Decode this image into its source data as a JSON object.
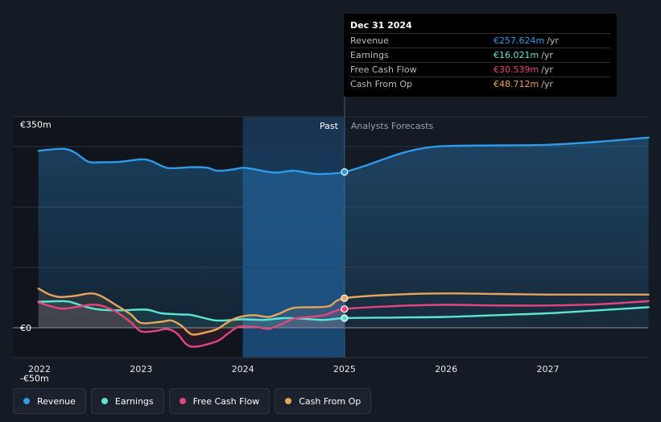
{
  "chart_data": {
    "type": "line",
    "title": "",
    "x_unit": "year",
    "xlim": [
      2021.9,
      2027.99
    ],
    "ylim": [
      -50,
      350
    ],
    "y_tick_labels": [
      {
        "value": 350,
        "label": "€350m"
      },
      {
        "value": 0,
        "label": "€0"
      },
      {
        "value": -50,
        "label": "-€50m"
      }
    ],
    "x_ticks": [
      {
        "value": 2022,
        "label": "2022"
      },
      {
        "value": 2023,
        "label": "2023"
      },
      {
        "value": 2024,
        "label": "2024"
      },
      {
        "value": 2025,
        "label": "2025"
      },
      {
        "value": 2026,
        "label": "2026"
      },
      {
        "value": 2027,
        "label": "2027"
      }
    ],
    "gridlines": [
      300,
      200,
      100,
      0
    ],
    "past_label": "Past",
    "forecast_label": "Analysts Forecasts",
    "past_end": 2025.0,
    "highlight_start": 2024.0,
    "series": [
      {
        "name": "Revenue",
        "color": "#2f9ae8",
        "points": [
          [
            2021.99,
            293
          ],
          [
            2022.1,
            295
          ],
          [
            2022.25,
            296
          ],
          [
            2022.35,
            290
          ],
          [
            2022.48,
            275
          ],
          [
            2022.6,
            274
          ],
          [
            2022.8,
            275
          ],
          [
            2023.0,
            279
          ],
          [
            2023.1,
            276
          ],
          [
            2023.25,
            265
          ],
          [
            2023.4,
            265
          ],
          [
            2023.5,
            266
          ],
          [
            2023.65,
            265
          ],
          [
            2023.75,
            260
          ],
          [
            2023.9,
            262
          ],
          [
            2024.0,
            265
          ],
          [
            2024.1,
            263
          ],
          [
            2024.25,
            258
          ],
          [
            2024.35,
            257
          ],
          [
            2024.5,
            260
          ],
          [
            2024.7,
            255
          ],
          [
            2024.85,
            255
          ],
          [
            2025.0,
            258
          ],
          [
            2025.2,
            268
          ],
          [
            2025.4,
            280
          ],
          [
            2025.6,
            291
          ],
          [
            2025.8,
            298
          ],
          [
            2026.0,
            301
          ],
          [
            2026.5,
            302
          ],
          [
            2027.0,
            303
          ],
          [
            2027.5,
            308
          ],
          [
            2027.99,
            315
          ]
        ]
      },
      {
        "name": "Earnings",
        "color": "#5de4d2",
        "points": [
          [
            2021.99,
            43
          ],
          [
            2022.2,
            44
          ],
          [
            2022.3,
            43
          ],
          [
            2022.45,
            35
          ],
          [
            2022.6,
            30
          ],
          [
            2022.8,
            29
          ],
          [
            2023.05,
            30
          ],
          [
            2023.2,
            24
          ],
          [
            2023.4,
            22
          ],
          [
            2023.5,
            21
          ],
          [
            2023.7,
            13
          ],
          [
            2023.8,
            12
          ],
          [
            2024.0,
            14
          ],
          [
            2024.2,
            13
          ],
          [
            2024.4,
            16
          ],
          [
            2024.6,
            15
          ],
          [
            2024.8,
            13
          ],
          [
            2025.0,
            16
          ],
          [
            2025.5,
            17
          ],
          [
            2026.0,
            18
          ],
          [
            2026.5,
            21
          ],
          [
            2027.0,
            24
          ],
          [
            2027.5,
            29
          ],
          [
            2027.99,
            34
          ]
        ]
      },
      {
        "name": "Free Cash Flow",
        "color": "#e4457e",
        "points": [
          [
            2021.99,
            42
          ],
          [
            2022.2,
            32
          ],
          [
            2022.35,
            34
          ],
          [
            2022.5,
            38
          ],
          [
            2022.6,
            37
          ],
          [
            2022.75,
            27
          ],
          [
            2022.9,
            9
          ],
          [
            2023.0,
            -6
          ],
          [
            2023.15,
            -5
          ],
          [
            2023.25,
            -2
          ],
          [
            2023.35,
            -9
          ],
          [
            2023.45,
            -28
          ],
          [
            2023.55,
            -31
          ],
          [
            2023.75,
            -22
          ],
          [
            2023.85,
            -10
          ],
          [
            2023.95,
            1
          ],
          [
            2024.05,
            2
          ],
          [
            2024.15,
            1
          ],
          [
            2024.25,
            -2
          ],
          [
            2024.35,
            4
          ],
          [
            2024.5,
            15
          ],
          [
            2024.65,
            18
          ],
          [
            2024.8,
            21
          ],
          [
            2025.0,
            31
          ],
          [
            2025.5,
            36
          ],
          [
            2026.0,
            38
          ],
          [
            2026.5,
            37
          ],
          [
            2027.0,
            37
          ],
          [
            2027.5,
            39
          ],
          [
            2027.99,
            44
          ]
        ]
      },
      {
        "name": "Cash From Op",
        "color": "#e7a55b",
        "points": [
          [
            2021.99,
            65
          ],
          [
            2022.1,
            55
          ],
          [
            2022.2,
            51
          ],
          [
            2022.35,
            53
          ],
          [
            2022.5,
            57
          ],
          [
            2022.6,
            53
          ],
          [
            2022.75,
            38
          ],
          [
            2022.9,
            22
          ],
          [
            2023.0,
            8
          ],
          [
            2023.2,
            10
          ],
          [
            2023.3,
            12
          ],
          [
            2023.4,
            3
          ],
          [
            2023.5,
            -11
          ],
          [
            2023.65,
            -7
          ],
          [
            2023.75,
            -2
          ],
          [
            2023.85,
            9
          ],
          [
            2023.95,
            17
          ],
          [
            2024.1,
            21
          ],
          [
            2024.25,
            18
          ],
          [
            2024.35,
            23
          ],
          [
            2024.5,
            33
          ],
          [
            2024.7,
            34
          ],
          [
            2024.85,
            36
          ],
          [
            2025.0,
            49
          ],
          [
            2025.5,
            55
          ],
          [
            2026.0,
            57
          ],
          [
            2026.5,
            56
          ],
          [
            2027.0,
            55
          ],
          [
            2027.5,
            55
          ],
          [
            2027.99,
            55
          ]
        ]
      }
    ]
  },
  "tooltip": {
    "date": "Dec 31 2024",
    "rows": [
      {
        "label": "Revenue",
        "value": "€257.624m",
        "unit": "/yr",
        "color": "#2f9ae8"
      },
      {
        "label": "Earnings",
        "value": "€16.021m",
        "unit": "/yr",
        "color": "#5de4d2"
      },
      {
        "label": "Free Cash Flow",
        "value": "€30.539m",
        "unit": "/yr",
        "color": "#e4457e"
      },
      {
        "label": "Cash From Op",
        "value": "€48.712m",
        "unit": "/yr",
        "color": "#e7a55b"
      }
    ]
  },
  "legend": [
    {
      "label": "Revenue",
      "color": "#2f9ae8"
    },
    {
      "label": "Earnings",
      "color": "#5de4d2"
    },
    {
      "label": "Free Cash Flow",
      "color": "#e4457e"
    },
    {
      "label": "Cash From Op",
      "color": "#e7a55b"
    }
  ]
}
